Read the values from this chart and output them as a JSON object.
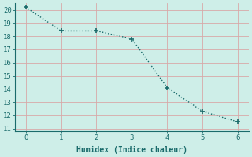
{
  "x": [
    0,
    1,
    2,
    3,
    4,
    5,
    6
  ],
  "y": [
    20.2,
    18.4,
    18.4,
    17.8,
    14.1,
    12.3,
    11.5
  ],
  "line_color": "#1a6b6b",
  "marker": "+",
  "markersize": 4,
  "markeredgewidth": 1.2,
  "linewidth": 1.0,
  "linestyle": ":",
  "xlabel": "Humidex (Indice chaleur)",
  "xlabel_fontsize": 7,
  "ylabel_ticks": [
    11,
    12,
    13,
    14,
    15,
    16,
    17,
    18,
    19,
    20
  ],
  "xticks": [
    0,
    1,
    2,
    3,
    4,
    5,
    6
  ],
  "ylim": [
    10.8,
    20.5
  ],
  "xlim": [
    -0.3,
    6.3
  ],
  "background_color": "#ceeee8",
  "grid_color": "#d8a8a8",
  "spine_color": "#1a6b6b",
  "tick_fontsize": 6.5,
  "font_family": "monospace"
}
